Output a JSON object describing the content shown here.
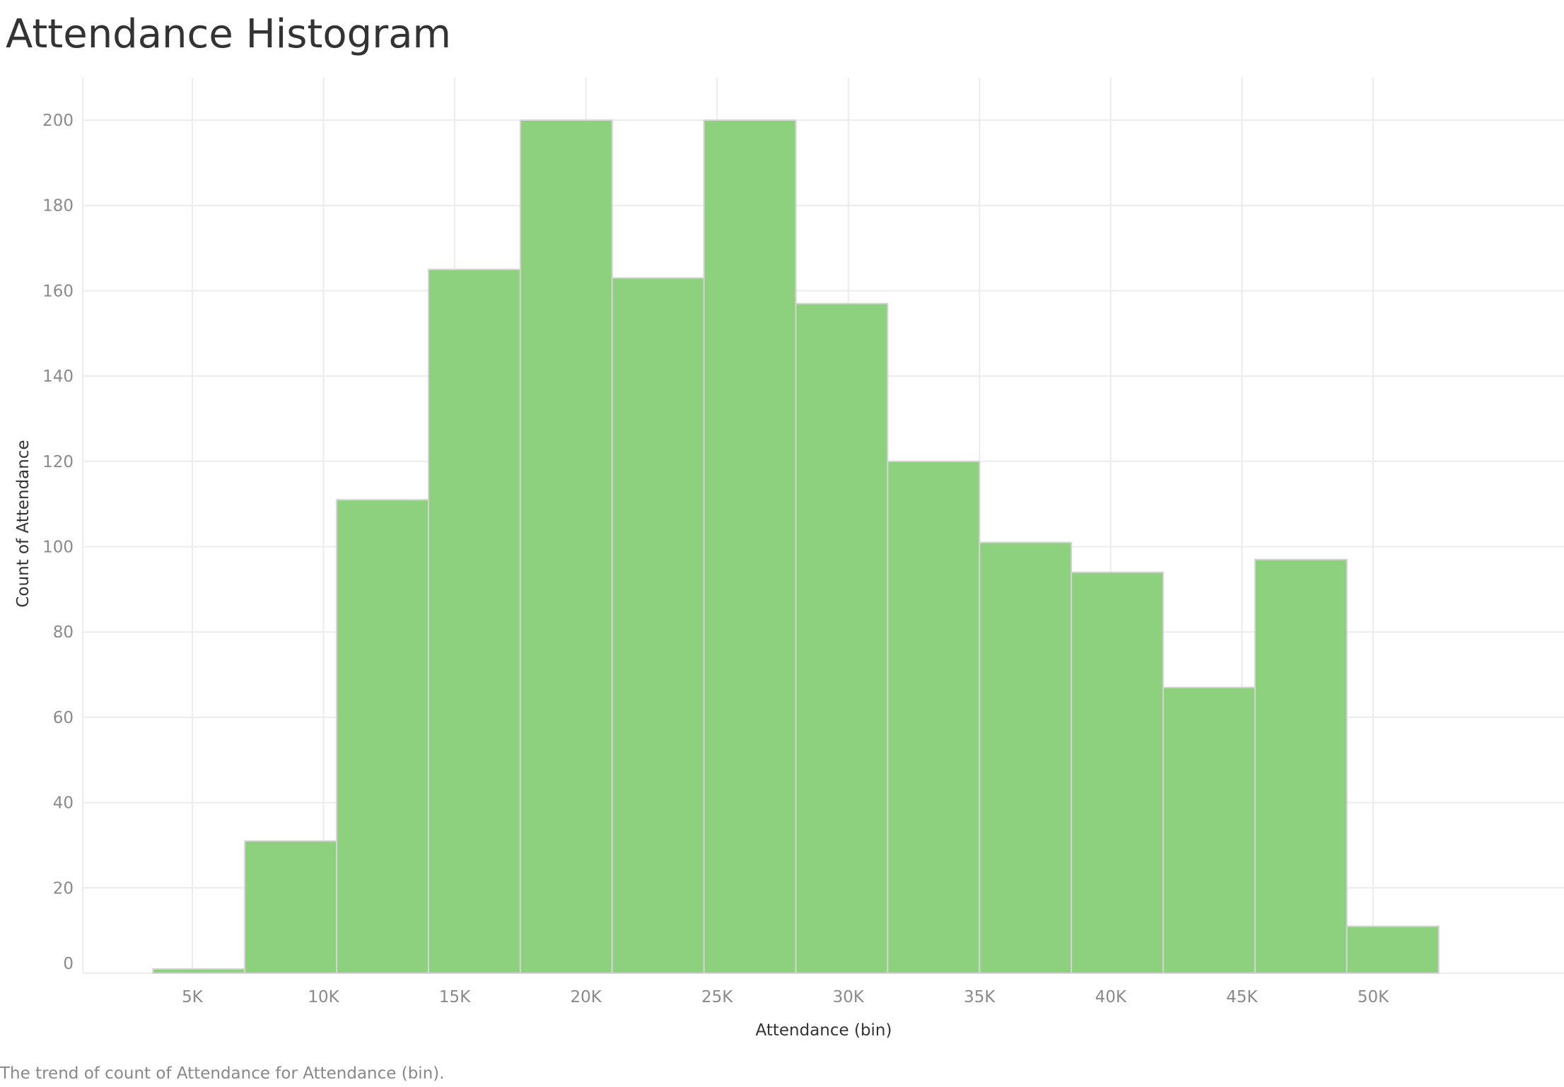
{
  "title": "Attendance Histogram",
  "caption": "The trend of count of Attendance for Attendance (bin).",
  "chart_data": {
    "type": "bar",
    "title": "Attendance Histogram",
    "xlabel": "Attendance (bin)",
    "ylabel": "Count of Attendance",
    "bin_width": 3500,
    "bins": [
      {
        "start": 3500,
        "end": 7000,
        "count": 1
      },
      {
        "start": 7000,
        "end": 10500,
        "count": 31
      },
      {
        "start": 10500,
        "end": 14000,
        "count": 111
      },
      {
        "start": 14000,
        "end": 17500,
        "count": 165
      },
      {
        "start": 17500,
        "end": 21000,
        "count": 200
      },
      {
        "start": 21000,
        "end": 24500,
        "count": 163
      },
      {
        "start": 24500,
        "end": 28000,
        "count": 200
      },
      {
        "start": 28000,
        "end": 31500,
        "count": 157
      },
      {
        "start": 31500,
        "end": 35000,
        "count": 120
      },
      {
        "start": 35000,
        "end": 38500,
        "count": 101
      },
      {
        "start": 38500,
        "end": 42000,
        "count": 94
      },
      {
        "start": 42000,
        "end": 45500,
        "count": 67
      },
      {
        "start": 45500,
        "end": 49000,
        "count": 97
      },
      {
        "start": 49000,
        "end": 52500,
        "count": 11
      }
    ],
    "x_ticks": [
      {
        "value": 5000,
        "label": "5K"
      },
      {
        "value": 10000,
        "label": "10K"
      },
      {
        "value": 15000,
        "label": "15K"
      },
      {
        "value": 20000,
        "label": "20K"
      },
      {
        "value": 25000,
        "label": "25K"
      },
      {
        "value": 30000,
        "label": "30K"
      },
      {
        "value": 35000,
        "label": "35K"
      },
      {
        "value": 40000,
        "label": "40K"
      },
      {
        "value": 45000,
        "label": "45K"
      },
      {
        "value": 50000,
        "label": "50K"
      }
    ],
    "y_ticks": [
      {
        "value": 0,
        "label": "0"
      },
      {
        "value": 20,
        "label": "20"
      },
      {
        "value": 40,
        "label": "40"
      },
      {
        "value": 60,
        "label": "60"
      },
      {
        "value": 80,
        "label": "80"
      },
      {
        "value": 100,
        "label": "100"
      },
      {
        "value": 120,
        "label": "120"
      },
      {
        "value": 140,
        "label": "140"
      },
      {
        "value": 160,
        "label": "160"
      },
      {
        "value": 180,
        "label": "180"
      },
      {
        "value": 200,
        "label": "200"
      }
    ],
    "xlim": [
      1000,
      54500
    ],
    "ylim": [
      0,
      200
    ],
    "grid": true,
    "legend": "none",
    "colors": {
      "bar_fill": "#8dd17e",
      "bar_stroke": "#d4d4d4",
      "grid": "#ececec"
    }
  }
}
